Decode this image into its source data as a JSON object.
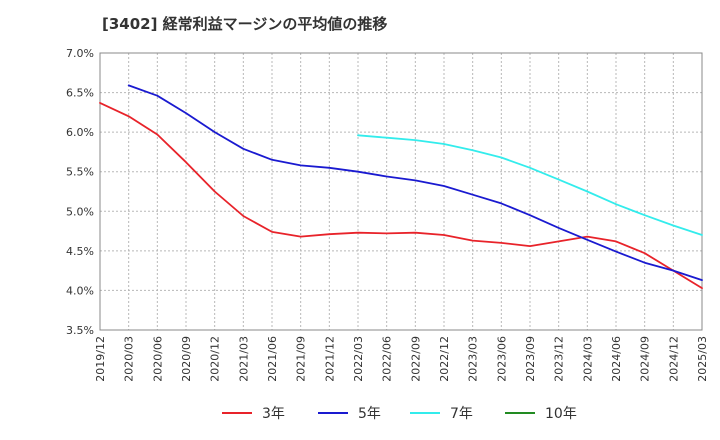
{
  "chart_data": {
    "type": "line",
    "title": "[3402]  経常利益マージンの平均値の推移",
    "xlabel": "",
    "ylabel": "",
    "ylim": [
      3.5,
      7.0
    ],
    "y_ticks": [
      "3.5%",
      "4.0%",
      "4.5%",
      "5.0%",
      "5.5%",
      "6.0%",
      "6.5%",
      "7.0%"
    ],
    "x_ticks": [
      "2019/12",
      "2020/03",
      "2020/06",
      "2020/09",
      "2020/12",
      "2021/03",
      "2021/06",
      "2021/09",
      "2021/12",
      "2022/03",
      "2022/06",
      "2022/09",
      "2022/12",
      "2023/03",
      "2023/06",
      "2023/09",
      "2023/12",
      "2024/03",
      "2024/06",
      "2024/09",
      "2024/12",
      "2025/03"
    ],
    "grid": true,
    "legend_position": "bottom",
    "series": [
      {
        "name": "3年",
        "color": "#e8232a",
        "start_index": 0,
        "values": [
          6.37,
          6.2,
          5.97,
          5.62,
          5.25,
          4.94,
          4.74,
          4.68,
          4.71,
          4.73,
          4.72,
          4.73,
          4.7,
          4.63,
          4.6,
          4.56,
          4.62,
          4.68,
          4.62,
          4.47,
          4.25,
          4.03
        ]
      },
      {
        "name": "5年",
        "color": "#1a1ad0",
        "start_index": 1,
        "values": [
          6.59,
          6.46,
          6.24,
          6.0,
          5.79,
          5.65,
          5.58,
          5.55,
          5.5,
          5.44,
          5.39,
          5.32,
          5.21,
          5.1,
          4.95,
          4.79,
          4.64,
          4.49,
          4.35,
          4.25,
          4.13
        ]
      },
      {
        "name": "7年",
        "color": "#33ecec",
        "start_index": 9,
        "values": [
          5.96,
          5.93,
          5.9,
          5.85,
          5.77,
          5.68,
          5.55,
          5.4,
          5.25,
          5.09,
          4.95,
          4.82,
          4.7
        ]
      },
      {
        "name": "10年",
        "color": "#228b22",
        "start_index": 0,
        "values": []
      }
    ]
  }
}
